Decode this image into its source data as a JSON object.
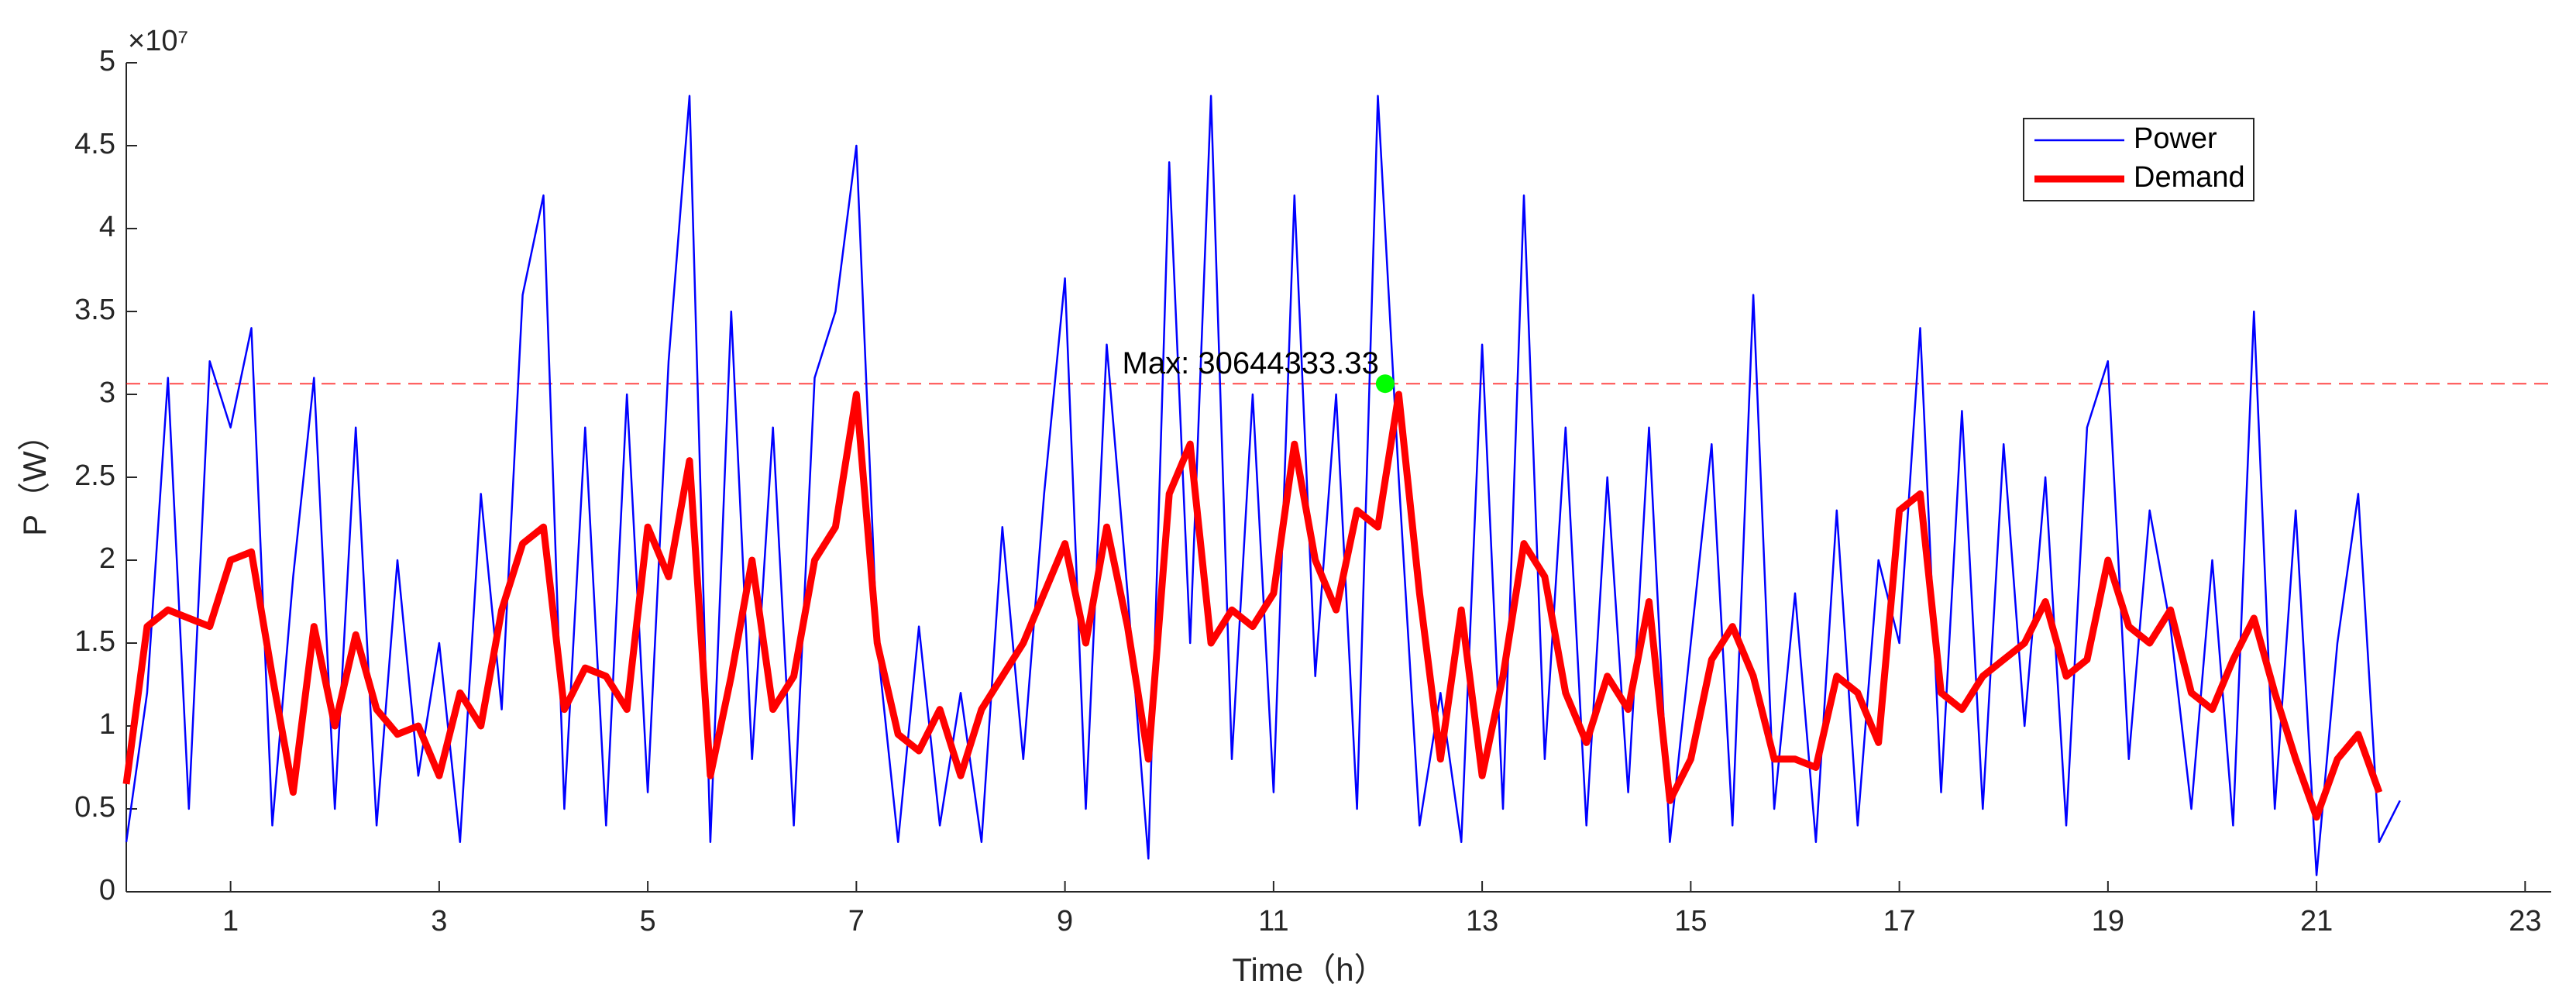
{
  "chart_data": {
    "type": "line",
    "x_label": "Time（h）",
    "y_label": "P（W）",
    "y_multiplier_label": "×10⁷",
    "xlim": [
      0,
      23.25
    ],
    "xticks": [
      1,
      3,
      5,
      7,
      9,
      11,
      13,
      15,
      17,
      19,
      21,
      23
    ],
    "ylim": [
      0,
      50000000
    ],
    "yticks": [
      {
        "value": 0,
        "label": "0"
      },
      {
        "value": 5000000,
        "label": "0.5"
      },
      {
        "value": 10000000,
        "label": "1"
      },
      {
        "value": 15000000,
        "label": "1.5"
      },
      {
        "value": 20000000,
        "label": "2"
      },
      {
        "value": 25000000,
        "label": "2.5"
      },
      {
        "value": 30000000,
        "label": "3"
      },
      {
        "value": 35000000,
        "label": "3.5"
      },
      {
        "value": 40000000,
        "label": "4"
      },
      {
        "value": 45000000,
        "label": "4.5"
      },
      {
        "value": 50000000,
        "label": "5"
      }
    ],
    "legend": "top-right",
    "x": [
      0,
      0.2,
      0.4,
      0.6,
      0.8,
      1,
      1.2,
      1.4,
      1.6,
      1.8,
      2,
      2.2,
      2.4,
      2.6,
      2.8,
      3,
      3.2,
      3.4,
      3.6,
      3.8,
      4,
      4.2,
      4.4,
      4.6,
      4.8,
      5,
      5.2,
      5.4,
      5.6,
      5.8,
      6,
      6.2,
      6.4,
      6.6,
      6.8,
      7,
      7.2,
      7.4,
      7.6,
      7.8,
      8,
      8.2,
      8.4,
      8.6,
      8.8,
      9,
      9.2,
      9.4,
      9.6,
      9.8,
      10,
      10.2,
      10.4,
      10.6,
      10.8,
      11,
      11.2,
      11.4,
      11.6,
      11.8,
      12,
      12.2,
      12.4,
      12.6,
      12.8,
      13,
      13.2,
      13.4,
      13.6,
      13.8,
      14,
      14.2,
      14.4,
      14.6,
      14.8,
      15,
      15.2,
      15.4,
      15.6,
      15.8,
      16,
      16.2,
      16.4,
      16.6,
      16.8,
      17,
      17.2,
      17.4,
      17.6,
      17.8,
      18,
      18.2,
      18.4,
      18.6,
      18.8,
      19,
      19.2,
      19.4,
      19.6,
      19.8,
      20,
      20.2,
      20.4,
      20.6,
      20.8,
      21,
      21.2,
      21.4,
      21.6,
      21.8
    ],
    "series": [
      {
        "name": "Power",
        "color": "#0000ff",
        "width": 2.5,
        "values": [
          3000000,
          12000000,
          31000000,
          5000000,
          32000000,
          28000000,
          34000000,
          4000000,
          19000000,
          31000000,
          5000000,
          28000000,
          4000000,
          20000000,
          7000000,
          15000000,
          3000000,
          24000000,
          11000000,
          36000000,
          42000000,
          5000000,
          28000000,
          4000000,
          30000000,
          6000000,
          32000000,
          48000000,
          3000000,
          35000000,
          8000000,
          28000000,
          4000000,
          31000000,
          35000000,
          45000000,
          15000000,
          3000000,
          16000000,
          4000000,
          12000000,
          3000000,
          22000000,
          8000000,
          24000000,
          37000000,
          5000000,
          33000000,
          18000000,
          2000000,
          44000000,
          15000000,
          48000000,
          8000000,
          30000000,
          6000000,
          42000000,
          13000000,
          30000000,
          5000000,
          48000000,
          25000000,
          4000000,
          12000000,
          3000000,
          33000000,
          5000000,
          42000000,
          8000000,
          28000000,
          4000000,
          25000000,
          6000000,
          28000000,
          3000000,
          15000000,
          27000000,
          4000000,
          36000000,
          5000000,
          18000000,
          3000000,
          23000000,
          4000000,
          20000000,
          15000000,
          34000000,
          6000000,
          29000000,
          5000000,
          27000000,
          10000000,
          25000000,
          4000000,
          28000000,
          32000000,
          8000000,
          23000000,
          16000000,
          5000000,
          20000000,
          4000000,
          35000000,
          5000000,
          23000000,
          1000000,
          15000000,
          24000000,
          3000000,
          5500000
        ]
      },
      {
        "name": "Demand",
        "color": "#ff0000",
        "width": 9,
        "values": [
          6500000,
          16000000,
          17000000,
          16500000,
          16000000,
          20000000,
          20500000,
          13000000,
          6000000,
          16000000,
          10000000,
          15500000,
          11000000,
          9500000,
          10000000,
          7000000,
          12000000,
          10000000,
          17000000,
          21000000,
          22000000,
          11000000,
          13500000,
          13000000,
          11000000,
          22000000,
          19000000,
          26000000,
          7000000,
          13000000,
          20000000,
          11000000,
          13000000,
          20000000,
          22000000,
          30000000,
          15000000,
          9500000,
          8500000,
          11000000,
          7000000,
          11000000,
          13000000,
          15000000,
          18000000,
          21000000,
          15000000,
          22000000,
          16000000,
          8000000,
          24000000,
          27000000,
          15000000,
          17000000,
          16000000,
          18000000,
          27000000,
          20000000,
          17000000,
          23000000,
          22000000,
          30000000,
          18000000,
          8000000,
          17000000,
          7000000,
          13000000,
          21000000,
          19000000,
          12000000,
          9000000,
          13000000,
          11000000,
          17500000,
          5500000,
          8000000,
          14000000,
          16000000,
          13000000,
          8000000,
          8000000,
          7500000,
          13000000,
          12000000,
          9000000,
          23000000,
          24000000,
          12000000,
          11000000,
          13000000,
          14000000,
          15000000,
          17500000,
          13000000,
          14000000,
          20000000,
          16000000,
          15000000,
          17000000,
          12000000,
          11000000,
          14000000,
          16500000,
          12000000,
          8000000,
          4500000,
          8000000,
          9500000,
          6000000,
          null
        ]
      }
    ],
    "max_marker": {
      "x": 12.07,
      "value": 30644333.33,
      "label": "Max: 30644333.33",
      "line_color": "#ff0000",
      "point_color": "#00ff00"
    }
  }
}
